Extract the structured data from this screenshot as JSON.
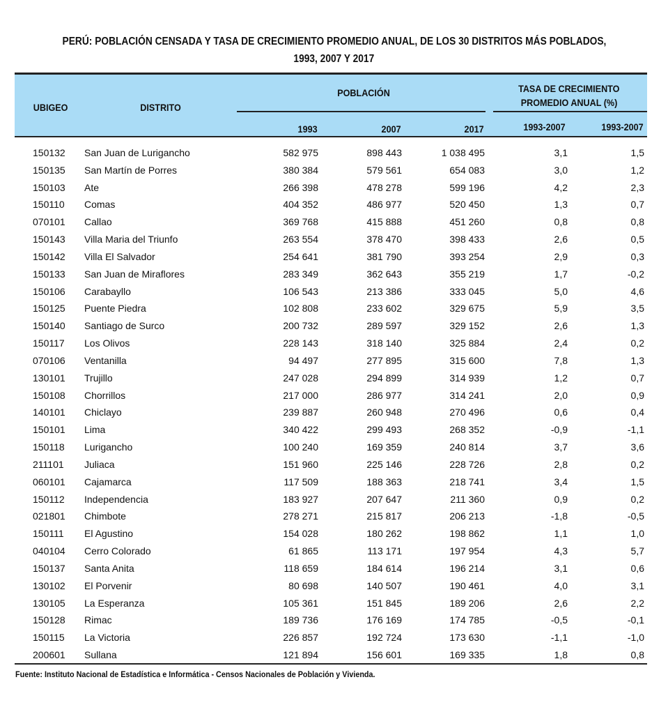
{
  "title": {
    "line1": "PERÚ: POBLACIÓN CENSADA Y TASA DE CRECIMIENTO PROMEDIO ANUAL, DE LOS 30 DISTRITOS MÁS POBLADOS,",
    "line2": "1993, 2007 Y 2017"
  },
  "header": {
    "ubigeo": "UBIGEO",
    "distrito": "DISTRITO",
    "poblacion": "POBLACIÓN",
    "tasa_line1": "TASA DE CRECIMIENTO",
    "tasa_line2": "PROMEDIO ANUAL (%)",
    "y1993": "1993",
    "y2007": "2007",
    "y2017": "2017",
    "rate1": "1993-2007",
    "rate2": "1993-2007"
  },
  "header_color": "#aadcf6",
  "rows": [
    [
      "150132",
      "San Juan de Lurigancho",
      "582 975",
      "898 443",
      "1 038 495",
      "3,1",
      "1,5"
    ],
    [
      "150135",
      "San Martín de Porres",
      "380 384",
      "579 561",
      "654 083",
      "3,0",
      "1,2"
    ],
    [
      "150103",
      "Ate",
      "266 398",
      "478 278",
      "599 196",
      "4,2",
      "2,3"
    ],
    [
      "150110",
      "Comas",
      "404 352",
      "486 977",
      "520 450",
      "1,3",
      "0,7"
    ],
    [
      "070101",
      "Callao",
      "369 768",
      "415 888",
      "451 260",
      "0,8",
      "0,8"
    ],
    [
      "150143",
      "Villa Maria del Triunfo",
      "263 554",
      "378 470",
      "398 433",
      "2,6",
      "0,5"
    ],
    [
      "150142",
      "Villa El Salvador",
      "254 641",
      "381 790",
      "393 254",
      "2,9",
      "0,3"
    ],
    [
      "150133",
      "San Juan de Miraflores",
      "283 349",
      "362 643",
      "355 219",
      "1,7",
      "-0,2"
    ],
    [
      "150106",
      "Carabayllo",
      "106 543",
      "213 386",
      "333 045",
      "5,0",
      "4,6"
    ],
    [
      "150125",
      "Puente Piedra",
      "102 808",
      "233 602",
      "329 675",
      "5,9",
      "3,5"
    ],
    [
      "150140",
      "Santiago de Surco",
      "200 732",
      "289 597",
      "329 152",
      "2,6",
      "1,3"
    ],
    [
      "150117",
      "Los Olivos",
      "228 143",
      "318 140",
      "325 884",
      "2,4",
      "0,2"
    ],
    [
      "070106",
      "Ventanilla",
      "94 497",
      "277 895",
      "315 600",
      "7,8",
      "1,3"
    ],
    [
      "130101",
      "Trujillo",
      "247 028",
      "294 899",
      "314 939",
      "1,2",
      "0,7"
    ],
    [
      "150108",
      "Chorrillos",
      "217 000",
      "286 977",
      "314 241",
      "2,0",
      "0,9"
    ],
    [
      "140101",
      "Chiclayo",
      "239 887",
      "260 948",
      "270 496",
      "0,6",
      "0,4"
    ],
    [
      "150101",
      "Lima",
      "340 422",
      "299 493",
      "268 352",
      "-0,9",
      "-1,1"
    ],
    [
      "150118",
      "Lurigancho",
      "100 240",
      "169 359",
      "240 814",
      "3,7",
      "3,6"
    ],
    [
      "211101",
      "Juliaca",
      "151 960",
      "225 146",
      "228 726",
      "2,8",
      "0,2"
    ],
    [
      "060101",
      "Cajamarca",
      "117 509",
      "188 363",
      "218 741",
      "3,4",
      "1,5"
    ],
    [
      "150112",
      "Independencia",
      "183 927",
      "207 647",
      "211 360",
      "0,9",
      "0,2"
    ],
    [
      "021801",
      "Chimbote",
      "278 271",
      "215 817",
      "206 213",
      "-1,8",
      "-0,5"
    ],
    [
      "150111",
      "El Agustino",
      "154 028",
      "180 262",
      "198 862",
      "1,1",
      "1,0"
    ],
    [
      "040104",
      "Cerro Colorado",
      "61 865",
      "113 171",
      "197 954",
      "4,3",
      "5,7"
    ],
    [
      "150137",
      "Santa Anita",
      "118 659",
      "184 614",
      "196 214",
      "3,1",
      "0,6"
    ],
    [
      "130102",
      "El Porvenir",
      "80 698",
      "140 507",
      "190 461",
      "4,0",
      "3,1"
    ],
    [
      "130105",
      "La Esperanza",
      "105 361",
      "151 845",
      "189 206",
      "2,6",
      "2,2"
    ],
    [
      "150128",
      "Rimac",
      "189 736",
      "176 169",
      "174 785",
      "-0,5",
      "-0,1"
    ],
    [
      "150115",
      "La Victoria",
      "226 857",
      "192 724",
      "173 630",
      "-1,1",
      "-1,0"
    ],
    [
      "200601",
      "Sullana",
      "121 894",
      "156 601",
      "169 335",
      "1,8",
      "0,8"
    ]
  ],
  "footer": "Fuente: Instituto Nacional de Estadística e Informática - Censos Nacionales de Población y Vivienda."
}
